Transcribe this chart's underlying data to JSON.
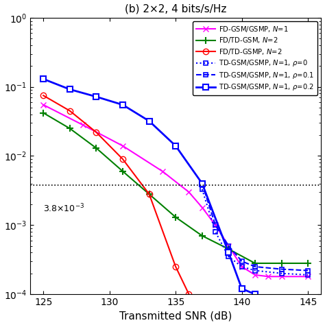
{
  "title": "(b) 2×2, 4 bits/s/Hz",
  "xlabel": "Transmitted SNR (dB)",
  "xlim": [
    124,
    146
  ],
  "ylim": [
    0.0001,
    1.0
  ],
  "xticks": [
    125,
    130,
    135,
    140,
    145
  ],
  "hline_y": 0.0038,
  "hline_label": "3.8×10$^{-3}$",
  "series": [
    {
      "label": "FD-GSM/GSMP, $N$=1",
      "color": "#FF00FF",
      "linestyle": "-",
      "marker": "x",
      "markersize": 6,
      "linewidth": 1.5,
      "x": [
        125,
        128,
        131,
        134,
        136,
        137,
        138,
        139,
        140,
        141,
        142,
        143,
        145
      ],
      "y": [
        0.055,
        0.028,
        0.014,
        0.006,
        0.003,
        0.0018,
        0.001,
        0.0005,
        0.00025,
        0.00019,
        0.00018,
        0.00018,
        0.00018
      ]
    },
    {
      "label": "FD/TD-GSM, $N$=2",
      "color": "#008000",
      "linestyle": "-",
      "marker": "+",
      "markersize": 7,
      "markeredgewidth": 1.5,
      "linewidth": 1.5,
      "x": [
        125,
        127,
        129,
        131,
        133,
        135,
        137,
        139,
        141,
        143,
        145
      ],
      "y": [
        0.042,
        0.025,
        0.013,
        0.006,
        0.0028,
        0.0013,
        0.0007,
        0.00045,
        0.00028,
        0.00028,
        0.00028
      ]
    },
    {
      "label": "FD/TD-GSMP, $N$=2",
      "color": "#FF0000",
      "linestyle": "-",
      "marker": "o",
      "markersize": 6,
      "markerfacecolor": "none",
      "linewidth": 1.5,
      "x": [
        125,
        127,
        129,
        131,
        133,
        135,
        136
      ],
      "y": [
        0.075,
        0.045,
        0.022,
        0.009,
        0.0028,
        0.00025,
        0.0001
      ]
    },
    {
      "label": "TD-GSM/GSMP, $N$=1, $\\rho$=0",
      "color": "#0000FF",
      "linestyle": ":",
      "marker": "s",
      "markersize": 5,
      "markerfacecolor": "none",
      "markeredgewidth": 1.2,
      "linewidth": 1.5,
      "x": [
        137,
        138,
        139,
        140,
        141,
        143,
        145
      ],
      "y": [
        0.0033,
        0.0008,
        0.00035,
        0.00025,
        0.00022,
        0.0002,
        0.00019
      ]
    },
    {
      "label": "TD-GSM/GSMP, $N$=1, $\\rho$=0.1",
      "color": "#0000FF",
      "linestyle": "--",
      "marker": "s",
      "markersize": 5,
      "markerfacecolor": "none",
      "markeredgewidth": 1.2,
      "linewidth": 1.5,
      "x": [
        137,
        138,
        139,
        140,
        141,
        143,
        145
      ],
      "y": [
        0.004,
        0.001,
        0.0005,
        0.0003,
        0.00025,
        0.00023,
        0.00022
      ]
    },
    {
      "label": "TD-GSM/GSMP, $N$=1, $\\rho$=0.2",
      "color": "#0000FF",
      "linestyle": "-",
      "marker": "s",
      "markersize": 6,
      "markerfacecolor": "white",
      "markeredgewidth": 1.5,
      "linewidth": 2.0,
      "x": [
        125,
        127,
        129,
        131,
        133,
        135,
        137,
        139,
        140,
        141
      ],
      "y": [
        0.13,
        0.092,
        0.072,
        0.055,
        0.032,
        0.014,
        0.004,
        0.0004,
        0.00012,
        0.0001
      ]
    }
  ]
}
